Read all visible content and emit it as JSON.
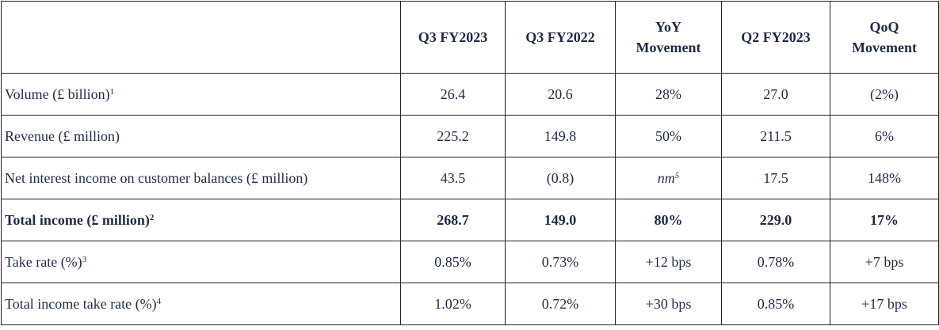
{
  "table": {
    "header": [
      "Q3 FY2023",
      "Q3 FY2022",
      "YoY\nMovement",
      "Q2 FY2023",
      "QoQ\nMovement"
    ],
    "rows": [
      {
        "label": "Volume (£ billion)",
        "sup": "1",
        "values": [
          "26.4",
          "20.6",
          "28%",
          "27.0",
          "(2%)"
        ]
      },
      {
        "label": "Revenue (£ million)",
        "values": [
          "225.2",
          "149.8",
          "50%",
          "211.5",
          "6%"
        ]
      },
      {
        "label": "Net interest income on customer balances (£ million)",
        "values": [
          "43.5",
          "(0.8)",
          {
            "text": "nm",
            "sup": "5"
          },
          "17.5",
          "148%"
        ]
      },
      {
        "label": "Total income (£ million)",
        "sup": "2",
        "bold": true,
        "values": [
          "268.7",
          "149.0",
          "80%",
          "229.0",
          "17%"
        ]
      },
      {
        "label": "Take rate (%)",
        "sup": "3",
        "values": [
          "0.85%",
          "0.73%",
          "+12 bps",
          "0.78%",
          "+7 bps"
        ]
      },
      {
        "label": "Total income take rate (%)",
        "sup": "4",
        "values": [
          "1.02%",
          "0.72%",
          "+30 bps",
          "0.85%",
          "+17 bps"
        ]
      }
    ]
  }
}
